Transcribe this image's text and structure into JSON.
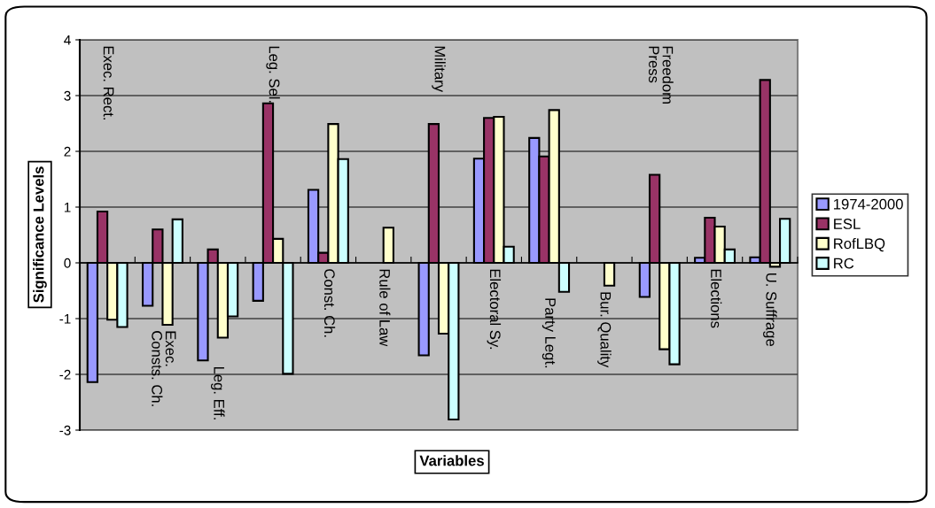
{
  "chart_data": {
    "type": "bar",
    "xlabel": "Variables",
    "ylabel": "Significance Levels",
    "categories": [
      "Exec. Rect.",
      "Exec.\nConsts. Ch.",
      "Leg. Eff.",
      "Leg. Sel.",
      "Const. Ch.",
      "Rule of Law",
      "Military",
      "Electoral Sy.",
      "Party Legt.",
      "Bur. Quality",
      "Freedom\nPress",
      "Elections",
      "U. Suffrage"
    ],
    "series": [
      {
        "name": "1974-2000",
        "color": "#9999ff",
        "values": [
          -2.14,
          -0.77,
          -1.75,
          -0.68,
          1.31,
          null,
          -1.66,
          1.87,
          2.24,
          null,
          -0.61,
          0.09,
          0.1
        ]
      },
      {
        "name": "ESL",
        "color": "#993366",
        "values": [
          0.92,
          0.6,
          0.24,
          2.86,
          0.18,
          null,
          2.49,
          2.6,
          1.91,
          null,
          1.58,
          0.81,
          3.28
        ]
      },
      {
        "name": "RofLBQ",
        "color": "#ffffcc",
        "values": [
          -1.02,
          -1.11,
          -1.34,
          0.43,
          2.49,
          0.63,
          -1.27,
          2.62,
          2.74,
          -0.41,
          -1.55,
          0.65,
          -0.07
        ]
      },
      {
        "name": "RC",
        "color": "#ccffff",
        "values": [
          -1.15,
          0.78,
          -0.96,
          -1.99,
          1.86,
          null,
          -2.81,
          0.29,
          -0.52,
          null,
          -1.82,
          0.24,
          0.79
        ]
      }
    ],
    "ylim": [
      -3,
      4
    ],
    "yticks": [
      -3,
      -2,
      -1,
      0,
      1,
      2,
      3,
      4
    ],
    "grid": "y",
    "legend": "right"
  }
}
